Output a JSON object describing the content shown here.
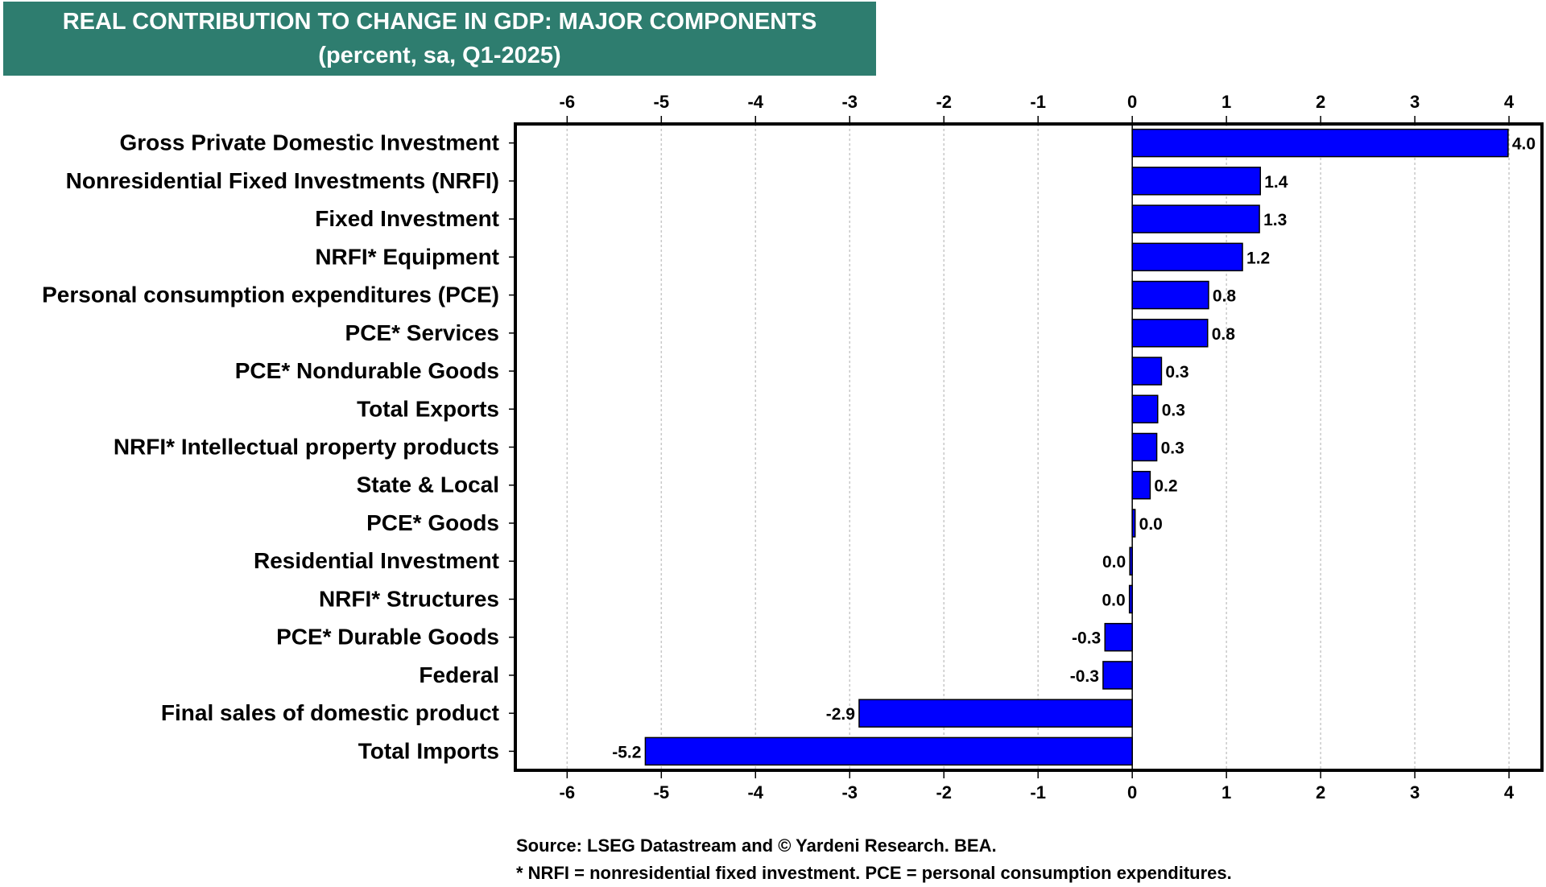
{
  "title": {
    "line1": "REAL CONTRIBUTION TO CHANGE IN GDP: MAJOR COMPONENTS",
    "line2": "(percent, sa, Q1-2025)"
  },
  "colors": {
    "title_bg": "#2e7d6f",
    "bar": "#0000ff",
    "bar_outline": "#000000"
  },
  "chart_data": {
    "type": "bar",
    "orientation": "horizontal",
    "categories": [
      "Gross Private Domestic Investment",
      "Nonresidential Fixed Investments (NRFI)",
      "Fixed Investment",
      "NRFI* Equipment",
      "Personal consumption expenditures (PCE)",
      "PCE* Services",
      "PCE* Nondurable Goods",
      "Total Exports",
      "NRFI* Intellectual property products",
      "State & Local",
      "PCE* Goods",
      "Residential Investment",
      "NRFI* Structures",
      "PCE* Durable Goods",
      "Federal",
      "Final sales of domestic product",
      "Total Imports"
    ],
    "values": [
      3.99,
      1.36,
      1.35,
      1.17,
      0.81,
      0.8,
      0.31,
      0.27,
      0.26,
      0.19,
      0.03,
      -0.02,
      -0.03,
      -0.29,
      -0.31,
      -2.9,
      -5.17
    ],
    "labels": [
      "4.0",
      "1.4",
      "1.3",
      "1.2",
      "0.8",
      "0.8",
      "0.3",
      "0.3",
      "0.3",
      "0.2",
      "0.0",
      "0.0",
      "0.0",
      "-0.3",
      "-0.3",
      "-2.9",
      "-5.2"
    ],
    "xlim": [
      -6.55,
      4.35
    ],
    "xticks": [
      -6,
      -5,
      -4,
      -3,
      -2,
      -1,
      0,
      1,
      2,
      3,
      4
    ],
    "grid": true
  },
  "footnotes": {
    "source": "Source: LSEG Datastream and © Yardeni Research. BEA.",
    "note": "* NRFI = nonresidential fixed investment. PCE = personal consumption expenditures."
  }
}
